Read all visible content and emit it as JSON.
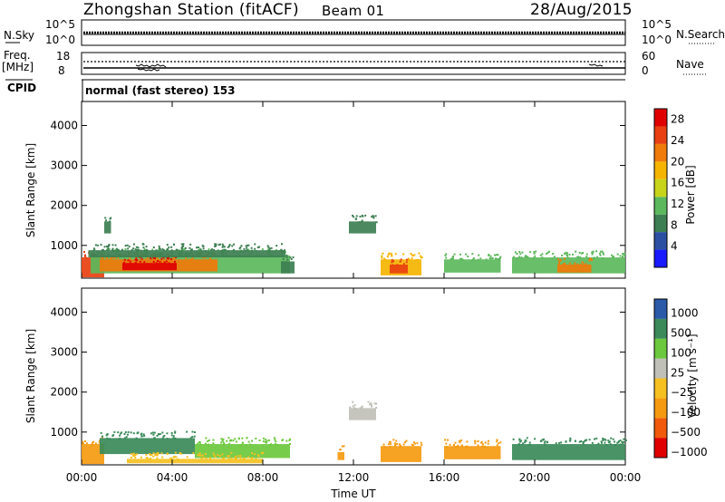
{
  "header": {
    "station": "Zhongshan Station (fitACF)",
    "beam": "Beam 01",
    "date": "28/Aug/2015"
  },
  "strips": {
    "nsky_label": "N.Sky",
    "nsky_ticks": [
      "10^5",
      "10^0"
    ],
    "nsearch_label": "N.Search",
    "nsearch_ticks": [
      "10^5",
      "10^0"
    ],
    "freq_label_1": "Freq.",
    "freq_label_2": "[MHz]",
    "freq_ticks": [
      "18",
      "8"
    ],
    "nave_label": "Nave",
    "nave_ticks": [
      "60",
      "0"
    ],
    "cpid_label": "CPID",
    "cpid_text": "normal (fast stereo) 153"
  },
  "colors": {
    "power": [
      "#1a1aff",
      "#2d4fa3",
      "#3d7f52",
      "#5cb85c",
      "#c8d41a",
      "#f5b400",
      "#f07a0a",
      "#e84010",
      "#e00000"
    ],
    "velocity": [
      "#e00000",
      "#f05a0a",
      "#f59a10",
      "#f5c020",
      "#c0c0b8",
      "#6cc83c",
      "#3a8a5a",
      "#2a5aa8"
    ]
  },
  "chart_data": [
    {
      "type": "heatmap",
      "panel": "power",
      "ylabel": "Slant Range [km]",
      "xlabel": "",
      "yticks": [
        "1000",
        "2000",
        "3000",
        "4000"
      ],
      "ylim": [
        180,
        4600
      ],
      "colorbar": {
        "label": "Power [dB]",
        "ticks": [
          "4",
          "8",
          "12",
          "16",
          "20",
          "24",
          "28"
        ],
        "range": [
          0,
          30
        ]
      },
      "patches": [
        {
          "x0": 0.0,
          "x1": 1.0,
          "y0": 200,
          "y1": 700,
          "v": 24
        },
        {
          "x0": 0.4,
          "x1": 9.2,
          "y0": 300,
          "y1": 750,
          "v": 13
        },
        {
          "x0": 0.8,
          "x1": 6.0,
          "y0": 350,
          "y1": 650,
          "v": 21
        },
        {
          "x0": 1.8,
          "x1": 4.2,
          "y0": 380,
          "y1": 560,
          "v": 27
        },
        {
          "x0": 0.3,
          "x1": 9.0,
          "y0": 700,
          "y1": 880,
          "v": 7
        },
        {
          "x0": 1.0,
          "x1": 1.3,
          "y0": 1300,
          "y1": 1600,
          "v": 7
        },
        {
          "x0": 11.8,
          "x1": 13.0,
          "y0": 1300,
          "y1": 1600,
          "v": 7
        },
        {
          "x0": 13.2,
          "x1": 15.0,
          "y0": 250,
          "y1": 650,
          "v": 18
        },
        {
          "x0": 13.6,
          "x1": 14.4,
          "y0": 300,
          "y1": 520,
          "v": 24
        },
        {
          "x0": 16.0,
          "x1": 18.5,
          "y0": 320,
          "y1": 650,
          "v": 12
        },
        {
          "x0": 19.0,
          "x1": 24.0,
          "y0": 300,
          "y1": 700,
          "v": 12
        },
        {
          "x0": 21.0,
          "x1": 22.5,
          "y0": 320,
          "y1": 520,
          "v": 20
        },
        {
          "x0": 8.8,
          "x1": 9.4,
          "y0": 300,
          "y1": 600,
          "v": 8
        }
      ]
    },
    {
      "type": "heatmap",
      "panel": "velocity",
      "ylabel": "Slant Range [km]",
      "xlabel": "Time UT",
      "yticks": [
        "1000",
        "2000",
        "3000",
        "4000"
      ],
      "ylim": [
        180,
        4600
      ],
      "xticks": [
        "00:00",
        "04:00",
        "08:00",
        "12:00",
        "16:00",
        "20:00",
        "00:00"
      ],
      "colorbar": {
        "label": "Velocity [m s⁻¹]",
        "ticks": [
          "1000",
          "500",
          "100",
          "25",
          "−25",
          "−100",
          "−500",
          "−1000"
        ]
      },
      "patches": [
        {
          "x0": 0.0,
          "x1": 1.0,
          "y0": 200,
          "y1": 700,
          "v": -200
        },
        {
          "x0": 0.8,
          "x1": 5.0,
          "y0": 450,
          "y1": 850,
          "v": 200
        },
        {
          "x0": 5.0,
          "x1": 9.2,
          "y0": 350,
          "y1": 700,
          "v": 60
        },
        {
          "x0": 2.0,
          "x1": 8.0,
          "y0": 220,
          "y1": 330,
          "v": -60
        },
        {
          "x0": 11.8,
          "x1": 13.0,
          "y0": 1300,
          "y1": 1600,
          "v": 0
        },
        {
          "x0": 13.2,
          "x1": 15.0,
          "y0": 250,
          "y1": 650,
          "v": -200
        },
        {
          "x0": 16.0,
          "x1": 18.5,
          "y0": 320,
          "y1": 650,
          "v": -150
        },
        {
          "x0": 19.0,
          "x1": 24.0,
          "y0": 300,
          "y1": 700,
          "v": 200
        },
        {
          "x0": 11.3,
          "x1": 11.6,
          "y0": 300,
          "y1": 500,
          "v": -200
        }
      ]
    }
  ]
}
